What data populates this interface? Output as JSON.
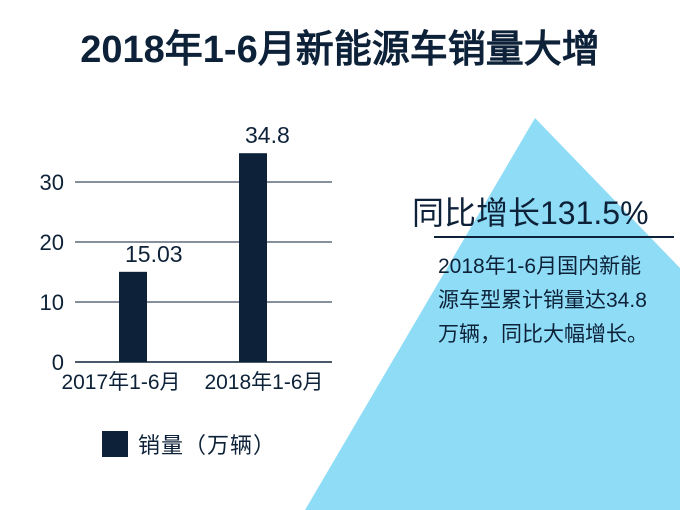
{
  "title": "2018年1-6月新能源车销量大增",
  "colors": {
    "bar": "#0d2238",
    "text": "#0d2238",
    "arrow": "#8fdcf7",
    "grid": "#0d2238"
  },
  "callout": {
    "headline": "同比增长131.5%",
    "body": "2018年1-6月国内新能源车型累计销量达34.8万辆，同比大幅增长。"
  },
  "chart_data": {
    "type": "bar",
    "categories": [
      "2017年1-6月",
      "2018年1-6月"
    ],
    "series": [
      {
        "name": "销量（万辆）",
        "values": [
          15.03,
          34.8
        ]
      }
    ],
    "value_labels": [
      "15.03",
      "34.8"
    ],
    "y_ticks": [
      "0",
      "10",
      "20",
      "30"
    ],
    "ylim": [
      0,
      30
    ],
    "grid": true,
    "legend_position": "bottom"
  }
}
